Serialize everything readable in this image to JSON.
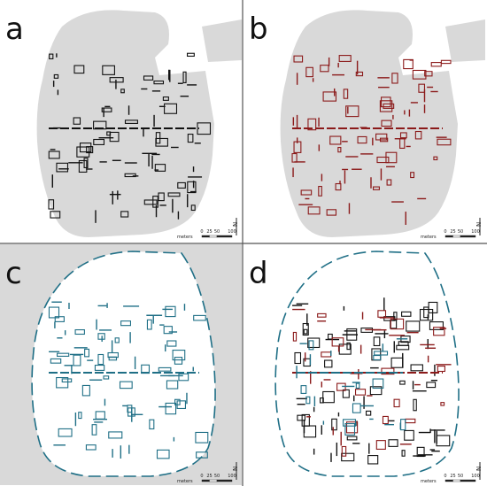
{
  "panels": [
    {
      "label": "a",
      "scale_unit": "meters",
      "scale_ticks": [
        0,
        25,
        50,
        100
      ],
      "north": "N"
    },
    {
      "label": "b",
      "scale_unit": "meters",
      "scale_ticks": [
        0,
        25,
        50,
        100
      ],
      "north": "N"
    },
    {
      "label": "c",
      "scale_unit": "meters",
      "scale_ticks": [
        0,
        25,
        50,
        100
      ],
      "north": "N"
    },
    {
      "label": "d",
      "scale_unit": "meters",
      "scale_ticks": [
        0,
        25,
        50,
        100
      ],
      "north": "N"
    }
  ]
}
